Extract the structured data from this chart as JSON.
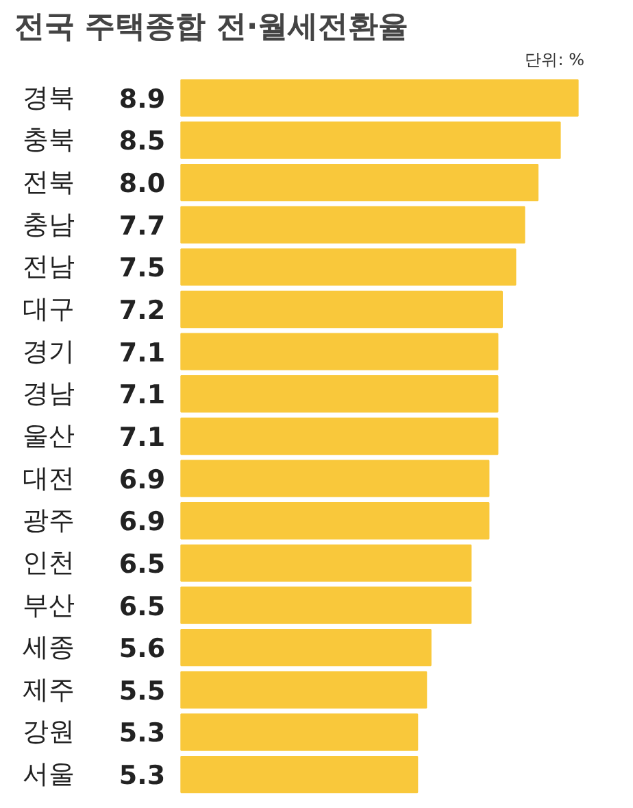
{
  "chart_data": {
    "type": "bar",
    "orientation": "horizontal",
    "title": "전국 주택종합 전·월세전환율",
    "annotations": [
      "단위: %"
    ],
    "categories": [
      "경북",
      "충북",
      "전북",
      "충남",
      "전남",
      "대구",
      "경기",
      "경남",
      "울산",
      "대전",
      "광주",
      "인천",
      "부산",
      "세종",
      "제주",
      "강원",
      "서울"
    ],
    "values": [
      8.9,
      8.5,
      8.0,
      7.7,
      7.5,
      7.2,
      7.1,
      7.1,
      7.1,
      6.9,
      6.9,
      6.5,
      6.5,
      5.6,
      5.5,
      5.3,
      5.3
    ],
    "value_labels": [
      "8.9",
      "8.5",
      "8.0",
      "7.7",
      "7.5",
      "7.2",
      "7.1",
      "7.1",
      "7.1",
      "6.9",
      "6.9",
      "6.5",
      "6.5",
      "5.6",
      "5.5",
      "5.3",
      "5.3"
    ],
    "color": "#f9c83b",
    "grid": false
  }
}
